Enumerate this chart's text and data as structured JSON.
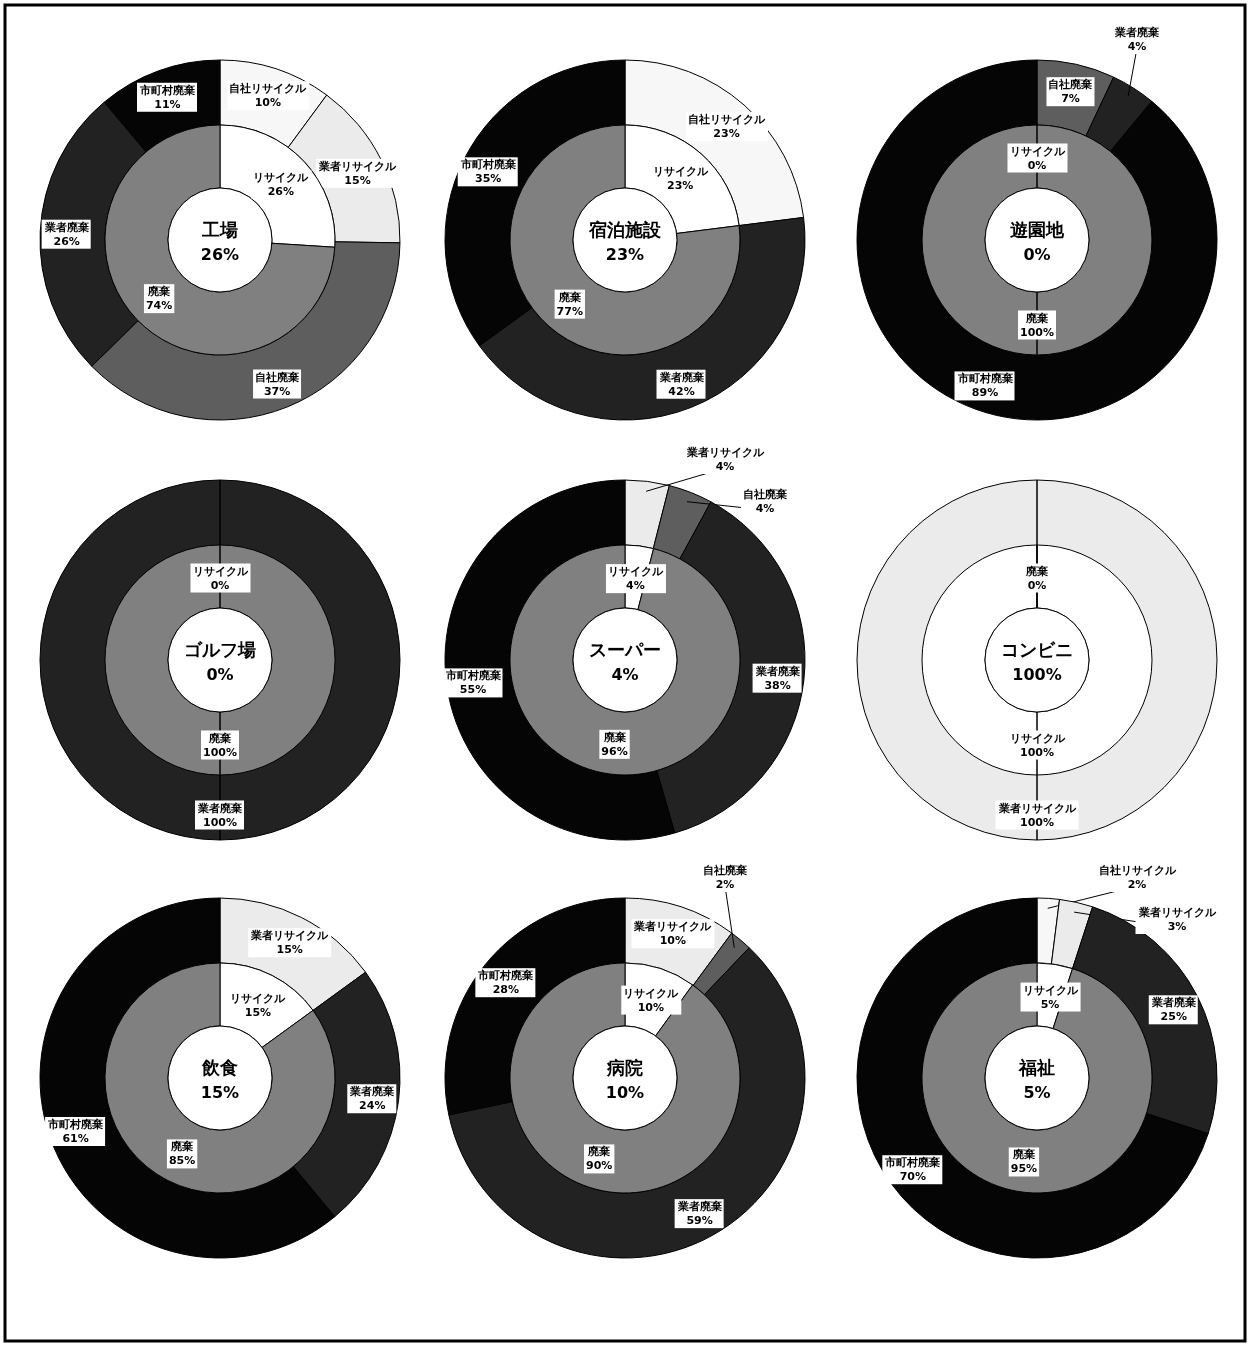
{
  "chart_data": [
    {
      "type": "donut",
      "title": "工場",
      "annotations": [
        "26%"
      ],
      "categories": [
        "リサイクル",
        "廃棄"
      ],
      "values": [
        26,
        74
      ],
      "value_labels": [
        "26%",
        "74%"
      ],
      "colors": [
        "#ffffff",
        "#808080"
      ]
    },
    {
      "type": "donut",
      "categories": [
        "自社リサイクル",
        "業者リサイクル",
        "自社廃棄",
        "業者廃棄",
        "市町村廃棄"
      ],
      "values": [
        10,
        15,
        37,
        26,
        11
      ],
      "value_labels": [
        "10%",
        "15%",
        "37%",
        "26%",
        "11%"
      ],
      "colors": [
        "#f7f7f7",
        "#ebebeb",
        "#5e5e5e",
        "#222222",
        "#050505"
      ]
    },
    {
      "type": "donut",
      "title": "宿泊施設",
      "annotations": [
        "23%"
      ],
      "categories": [
        "リサイクル",
        "廃棄"
      ],
      "values": [
        23,
        77
      ],
      "value_labels": [
        "23%",
        "77%"
      ],
      "colors": [
        "#ffffff",
        "#808080"
      ]
    },
    {
      "type": "donut",
      "categories": [
        "自社リサイクル",
        "業者廃棄",
        "市町村廃棄"
      ],
      "values": [
        23,
        42,
        35
      ],
      "value_labels": [
        "23%",
        "42%",
        "35%"
      ],
      "colors": [
        "#f7f7f7",
        "#222222",
        "#050505"
      ]
    },
    {
      "type": "donut",
      "title": "遊園地",
      "annotations": [
        "0%"
      ],
      "categories": [
        "リサイクル",
        "廃棄"
      ],
      "values": [
        0,
        100
      ],
      "value_labels": [
        "0%",
        "100%"
      ],
      "colors": [
        "#ffffff",
        "#808080"
      ]
    },
    {
      "type": "donut",
      "categories": [
        "自社廃棄",
        "業者廃棄",
        "市町村廃棄"
      ],
      "values": [
        7,
        4,
        89
      ],
      "value_labels": [
        "7%",
        "4%",
        "89%"
      ],
      "colors": [
        "#5e5e5e",
        "#222222",
        "#050505"
      ]
    },
    {
      "type": "donut",
      "title": "ゴルフ場",
      "annotations": [
        "0%"
      ],
      "categories": [
        "リサイクル",
        "廃棄"
      ],
      "values": [
        0,
        100
      ],
      "value_labels": [
        "0%",
        "100%"
      ],
      "colors": [
        "#ffffff",
        "#808080"
      ]
    },
    {
      "type": "pie",
      "categories": [
        "業者廃棄"
      ],
      "values": [
        100
      ],
      "value_labels": [
        "100%"
      ],
      "colors": [
        "#222222"
      ]
    },
    {
      "type": "donut",
      "title": "スーパー",
      "annotations": [
        "4%"
      ],
      "categories": [
        "リサイクル",
        "廃棄"
      ],
      "values": [
        4,
        96
      ],
      "value_labels": [
        "4%",
        "96%"
      ],
      "colors": [
        "#ffffff",
        "#808080"
      ]
    },
    {
      "type": "donut",
      "categories": [
        "業者リサイクル",
        "自社廃棄",
        "業者廃棄",
        "市町村廃棄"
      ],
      "values": [
        4,
        4,
        38,
        55
      ],
      "value_labels": [
        "4%",
        "4%",
        "38%",
        "55%"
      ],
      "colors": [
        "#ebebeb",
        "#5e5e5e",
        "#222222",
        "#050505"
      ]
    },
    {
      "type": "donut",
      "title": "コンビニ",
      "annotations": [
        "100%"
      ],
      "categories": [
        "リサイクル",
        "廃棄"
      ],
      "values": [
        100,
        0
      ],
      "value_labels": [
        "100%",
        "0%"
      ],
      "colors": [
        "#ffffff",
        "#808080"
      ]
    },
    {
      "type": "pie",
      "categories": [
        "業者リサイクル"
      ],
      "values": [
        100
      ],
      "value_labels": [
        "100%"
      ],
      "colors": [
        "#ebebeb"
      ]
    },
    {
      "type": "donut",
      "title": "飲食",
      "annotations": [
        "15%"
      ],
      "categories": [
        "リサイクル",
        "廃棄"
      ],
      "values": [
        15,
        85
      ],
      "value_labels": [
        "15%",
        "85%"
      ],
      "colors": [
        "#ffffff",
        "#808080"
      ]
    },
    {
      "type": "donut",
      "categories": [
        "業者リサイクル",
        "業者廃棄",
        "市町村廃棄"
      ],
      "values": [
        15,
        24,
        61
      ],
      "value_labels": [
        "15%",
        "24%",
        "61%"
      ],
      "colors": [
        "#ebebeb",
        "#222222",
        "#050505"
      ]
    },
    {
      "type": "donut",
      "title": "病院",
      "annotations": [
        "10%"
      ],
      "categories": [
        "リサイクル",
        "廃棄"
      ],
      "values": [
        10,
        90
      ],
      "value_labels": [
        "10%",
        "90%"
      ],
      "colors": [
        "#ffffff",
        "#808080"
      ]
    },
    {
      "type": "donut",
      "categories": [
        "業者リサイクル",
        "自社廃棄",
        "業者廃棄",
        "市町村廃棄"
      ],
      "values": [
        10,
        2,
        59,
        28
      ],
      "value_labels": [
        "10%",
        "2%",
        "59%",
        "28%"
      ],
      "colors": [
        "#ebebeb",
        "#5e5e5e",
        "#222222",
        "#050505"
      ]
    },
    {
      "type": "donut",
      "title": "福祉",
      "annotations": [
        "5%"
      ],
      "categories": [
        "リサイクル",
        "廃棄"
      ],
      "values": [
        5,
        95
      ],
      "value_labels": [
        "5%",
        "95%"
      ],
      "colors": [
        "#ffffff",
        "#808080"
      ]
    },
    {
      "type": "donut",
      "categories": [
        "自社リサイクル",
        "業者リサイクル",
        "業者廃棄",
        "市町村廃棄"
      ],
      "values": [
        2,
        3,
        25,
        70
      ],
      "value_labels": [
        "2%",
        "3%",
        "25%",
        "70%"
      ],
      "colors": [
        "#f7f7f7",
        "#ebebeb",
        "#222222",
        "#050505"
      ]
    }
  ]
}
